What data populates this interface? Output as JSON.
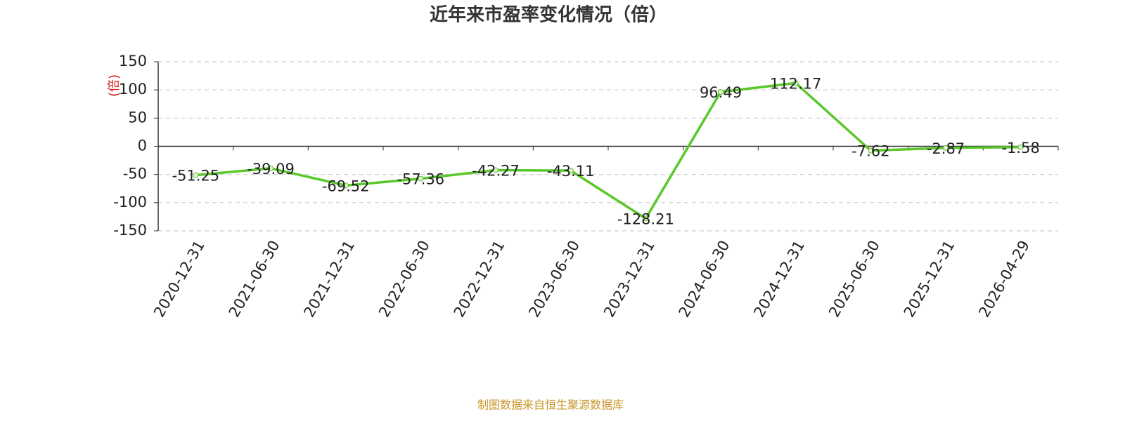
{
  "chart_data": {
    "type": "line",
    "title": "近年来市盈率变化情况（倍）",
    "ylabel": "(倍)",
    "footer": "制图数据来自恒生聚源数据库",
    "categories": [
      "2020-12-31",
      "2021-06-30",
      "2021-12-31",
      "2022-06-30",
      "2022-12-31",
      "2023-06-30",
      "2023-12-31",
      "2024-06-30",
      "2024-12-31",
      "2025-06-30",
      "2025-12-31",
      "2026-04-29"
    ],
    "values": [
      -51.25,
      -39.09,
      -69.52,
      -57.36,
      -42.27,
      -43.11,
      -128.21,
      96.49,
      112.17,
      -7.62,
      -2.87,
      -1.58
    ],
    "color": "#5ac72a",
    "ylim": [
      -150,
      150
    ],
    "yticks": [
      -150,
      -100,
      -50,
      0,
      50,
      100,
      150
    ],
    "grid": true
  }
}
